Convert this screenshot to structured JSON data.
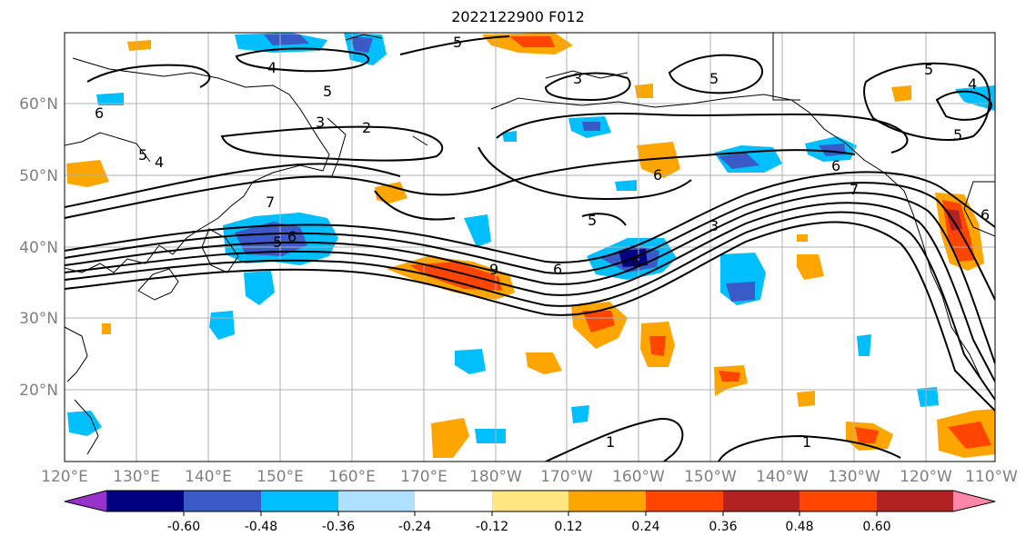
{
  "title": "2022122900 F012",
  "lat_labels": [
    "60°N",
    "50°N",
    "40°N",
    "30°N",
    "20°N"
  ],
  "lon_labels": [
    "120°E",
    "130°E",
    "140°E",
    "150°E",
    "160°E",
    "170°E",
    "180°W",
    "170°W",
    "160°W",
    "150°W",
    "140°W",
    "130°W",
    "120°W",
    "110°W"
  ],
  "colorbar": {
    "colors": [
      "#9932CC",
      "#000080",
      "#3A5BC7",
      "#00BFFF",
      "#B0E0FF",
      "#FFFFFF",
      "#FFE680",
      "#FFA500",
      "#FF4500",
      "#B22222",
      "#FF88AA"
    ],
    "tick_labels": [
      "-0.60",
      "-0.48",
      "-0.36",
      "-0.24",
      "-0.12",
      "0.12",
      "0.24",
      "0.36",
      "0.48",
      "0.60"
    ]
  },
  "contour_labels": [
    "4",
    "5",
    "5",
    "3",
    "5",
    "6",
    "3",
    "2",
    "4",
    "5",
    "7",
    "5",
    "6",
    "6",
    "6",
    "9",
    "6",
    "5",
    "3",
    "6",
    "7",
    "5",
    "4",
    "5",
    "6",
    "1",
    "1"
  ]
}
